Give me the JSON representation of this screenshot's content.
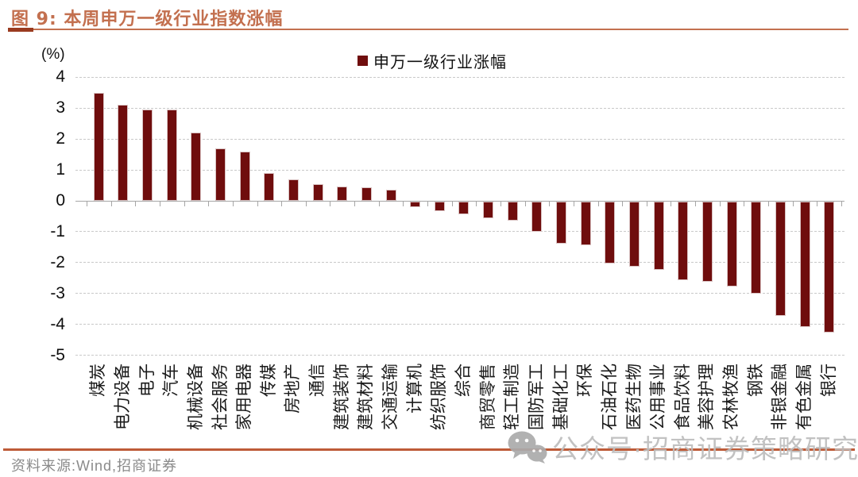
{
  "page": {
    "title": "图 9: 本周申万一级行业指数涨幅",
    "source": "资料来源:Wind,招商证券",
    "watermark": "公众号·招商证券策略研究"
  },
  "chart_data": {
    "type": "bar",
    "title": "本周申万一级行业指数涨幅",
    "unit_label": "(%)",
    "legend": [
      {
        "label": "申万一级行业涨幅",
        "color": "#6F0D0D"
      }
    ],
    "legend_position": "top-center",
    "grid": "horizontal-dashed",
    "ylim": [
      -5,
      4
    ],
    "yticks": [
      4,
      3,
      2,
      1,
      0,
      -1,
      -2,
      -3,
      -4,
      -5
    ],
    "bar_color": "#6F0D0D",
    "categories": [
      "煤炭",
      "电力设备",
      "电子",
      "汽车",
      "机械设备",
      "社会服务",
      "家用电器",
      "传媒",
      "房地产",
      "通信",
      "建筑装饰",
      "建筑材料",
      "交通运输",
      "计算机",
      "纺织服饰",
      "综合",
      "商贸零售",
      "轻工制造",
      "国防军工",
      "基础化工",
      "环保",
      "石油石化",
      "医药生物",
      "公用事业",
      "食品饮料",
      "美容护理",
      "农林牧渔",
      "钢铁",
      "非银金融",
      "有色金属",
      "银行"
    ],
    "values": [
      3.5,
      3.1,
      2.95,
      2.95,
      2.2,
      1.7,
      1.6,
      0.9,
      0.7,
      0.53,
      0.45,
      0.43,
      0.37,
      -0.18,
      -0.3,
      -0.42,
      -0.54,
      -0.62,
      -0.98,
      -1.35,
      -1.42,
      -2.0,
      -2.1,
      -2.2,
      -2.55,
      -2.6,
      -2.75,
      -2.98,
      -3.7,
      -4.07,
      -4.25
    ]
  },
  "colors": {
    "title": "#C3704F",
    "title_rule": "#C3704F",
    "title_rule_accent": "#9A3B20",
    "bottom_rule": "#BE5B38",
    "bar": "#6F0D0D",
    "gridline": "#C9C9C9",
    "axis": "#A6A6A6",
    "source_text": "#8A8A8A",
    "watermark": "#BDBDBD"
  }
}
